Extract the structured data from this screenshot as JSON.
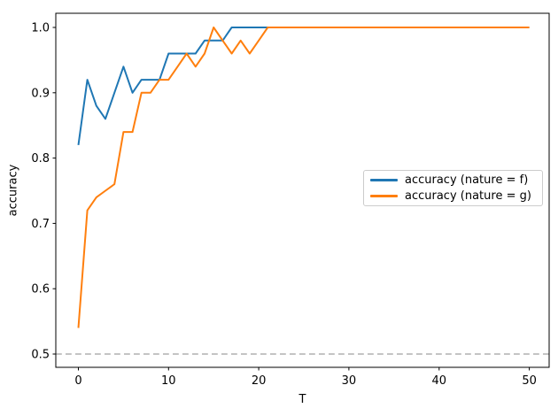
{
  "figure": {
    "background": "#ffffff",
    "xlabel": "T",
    "ylabel": "accuracy",
    "x_ticks": [
      0,
      10,
      20,
      30,
      40,
      50
    ],
    "x_tick_labels": [
      "0",
      "10",
      "20",
      "30",
      "40",
      "50"
    ],
    "y_ticks": [
      0.5,
      0.6,
      0.7,
      0.8,
      0.9,
      1.0
    ],
    "y_tick_labels": [
      "0.5",
      "0.6",
      "0.7",
      "0.8",
      "0.9",
      "1.0"
    ],
    "spine_color": "#000000",
    "tick_label_color": "#000000"
  },
  "chart_data": {
    "type": "line",
    "title": "",
    "xlabel": "T",
    "ylabel": "accuracy",
    "xlim": [
      -2.5,
      52.2
    ],
    "ylim": [
      0.4797,
      1.0217
    ],
    "grid": false,
    "x": [
      0,
      1,
      2,
      3,
      4,
      5,
      6,
      7,
      8,
      9,
      10,
      11,
      12,
      13,
      14,
      15,
      16,
      17,
      18,
      19,
      20,
      21,
      22,
      23,
      24,
      25,
      26,
      27,
      28,
      29,
      30,
      31,
      32,
      33,
      34,
      35,
      36,
      37,
      38,
      39,
      40,
      41,
      42,
      43,
      44,
      45,
      46,
      47,
      48,
      49,
      50
    ],
    "series": [
      {
        "name": "accuracy (nature = f)",
        "color": "#1f77b4",
        "values": [
          0.82,
          0.92,
          0.88,
          0.86,
          0.9,
          0.94,
          0.9,
          0.92,
          0.92,
          0.92,
          0.96,
          0.96,
          0.96,
          0.96,
          0.98,
          0.98,
          0.98,
          1.0,
          1.0,
          1.0,
          1.0,
          1.0,
          1.0,
          1.0,
          1.0,
          1.0,
          1.0,
          1.0,
          1.0,
          1.0,
          1.0,
          1.0,
          1.0,
          1.0,
          1.0,
          1.0,
          1.0,
          1.0,
          1.0,
          1.0,
          1.0,
          1.0,
          1.0,
          1.0,
          1.0,
          1.0,
          1.0,
          1.0,
          1.0,
          1.0,
          1.0
        ]
      },
      {
        "name": "accuracy (nature = g)",
        "color": "#ff7f0e",
        "values": [
          0.54,
          0.72,
          0.74,
          0.75,
          0.76,
          0.84,
          0.84,
          0.9,
          0.9,
          0.92,
          0.92,
          0.94,
          0.96,
          0.94,
          0.96,
          1.0,
          0.98,
          0.96,
          0.98,
          0.96,
          0.98,
          1.0,
          1.0,
          1.0,
          1.0,
          1.0,
          1.0,
          1.0,
          1.0,
          1.0,
          1.0,
          1.0,
          1.0,
          1.0,
          1.0,
          1.0,
          1.0,
          1.0,
          1.0,
          1.0,
          1.0,
          1.0,
          1.0,
          1.0,
          1.0,
          1.0,
          1.0,
          1.0,
          1.0,
          1.0,
          1.0
        ]
      }
    ],
    "baseline": {
      "y": 0.5,
      "style": "dashed",
      "color": "#b0b0b0"
    },
    "legend": {
      "position": "center right",
      "entries": [
        "accuracy (nature = f)",
        "accuracy (nature = g)"
      ]
    }
  }
}
